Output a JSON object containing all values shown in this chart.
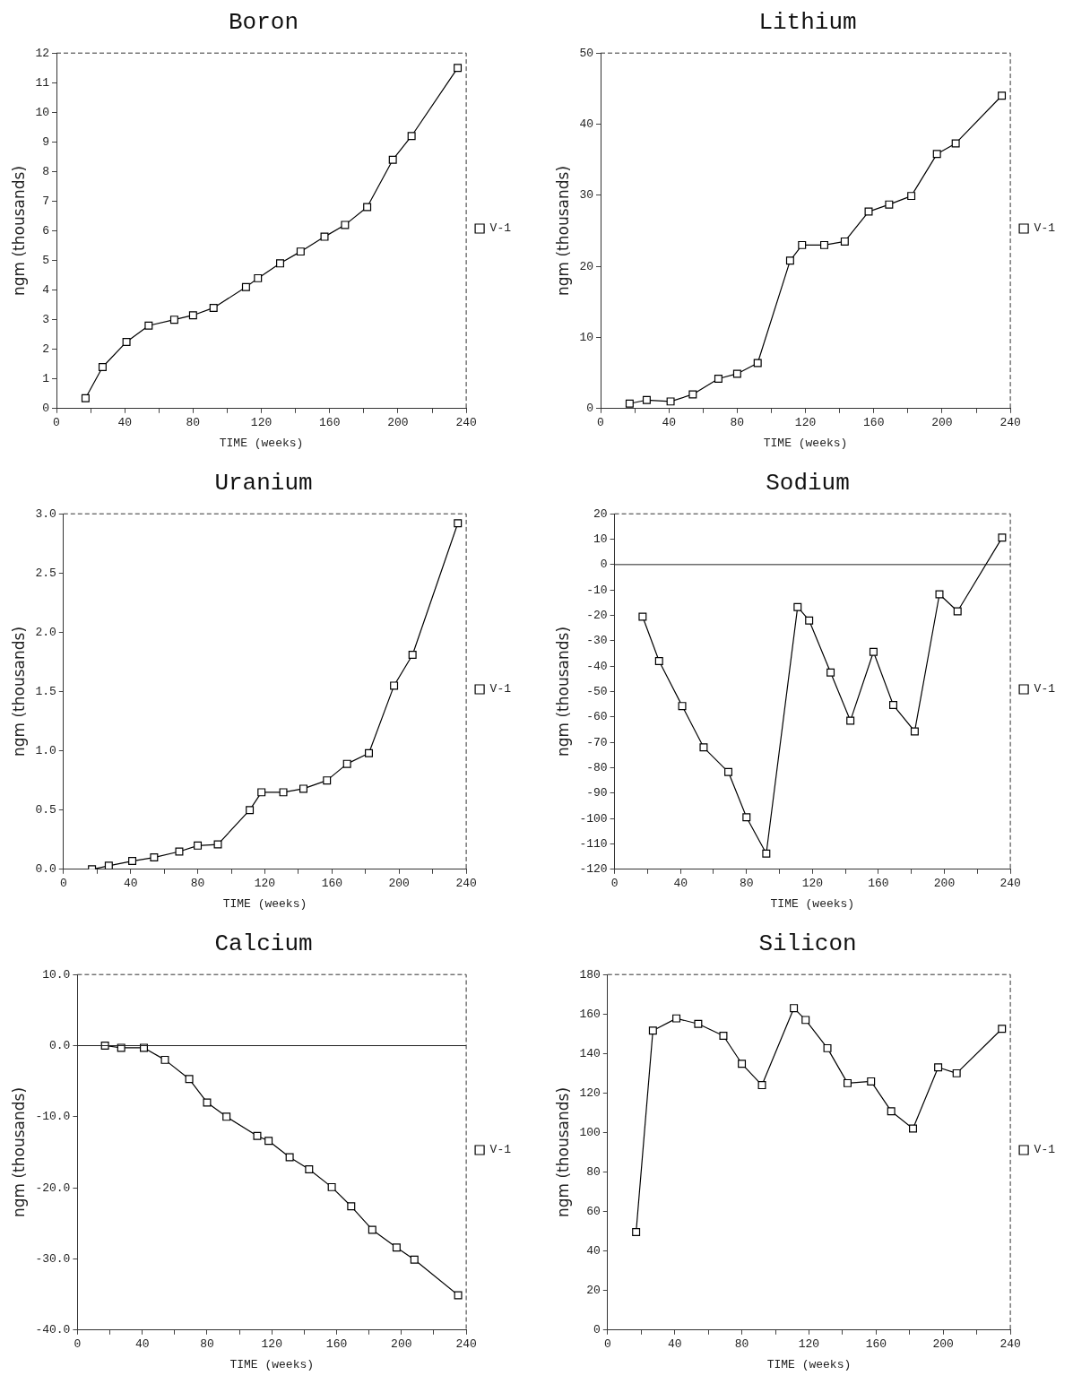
{
  "chart_data": [
    {
      "type": "line",
      "title": "Boron",
      "xlabel": "TIME (weeks)",
      "ylabel": "ngm (thousands)",
      "legend": "right",
      "marker": "square",
      "grid": false,
      "x": [
        17,
        27,
        41,
        54,
        69,
        80,
        92,
        111,
        118,
        131,
        143,
        157,
        169,
        182,
        197,
        208,
        235
      ],
      "series": [
        {
          "name": "V-1",
          "color": "#000000",
          "values": [
            0.35,
            1.4,
            2.25,
            2.8,
            3.0,
            3.15,
            3.4,
            4.1,
            4.4,
            4.9,
            5.3,
            5.8,
            6.2,
            6.8,
            8.4,
            9.2,
            11.5
          ]
        }
      ],
      "xlim": [
        0,
        240
      ],
      "xticks": [
        0,
        {
          "value": 20,
          "label": null
        },
        40,
        {
          "value": 60,
          "label": null
        },
        80,
        {
          "value": 100,
          "label": null
        },
        120,
        {
          "value": 140,
          "label": null
        },
        160,
        {
          "value": 180,
          "label": null
        },
        200,
        {
          "value": 220,
          "label": null
        },
        240
      ],
      "ylim": [
        0,
        12
      ],
      "yticks": [
        0,
        1,
        2,
        3,
        4,
        5,
        6,
        7,
        8,
        9,
        10,
        11,
        12
      ]
    },
    {
      "type": "line",
      "title": "Lithium",
      "xlabel": "TIME (weeks)",
      "ylabel": "ngm (thousands)",
      "legend": "right",
      "marker": "square",
      "grid": false,
      "x": [
        17,
        27,
        41,
        54,
        69,
        80,
        92,
        111,
        118,
        131,
        143,
        157,
        169,
        182,
        197,
        208,
        235
      ],
      "series": [
        {
          "name": "V-1",
          "color": "#000000",
          "values": [
            0.7,
            1.2,
            1.0,
            2.0,
            4.2,
            4.9,
            6.4,
            20.8,
            23.0,
            23.0,
            23.5,
            27.7,
            28.7,
            29.9,
            35.8,
            37.3,
            44.0
          ]
        }
      ],
      "xlim": [
        0,
        240
      ],
      "xticks": [
        0,
        {
          "value": 20,
          "label": null
        },
        40,
        {
          "value": 60,
          "label": null
        },
        80,
        {
          "value": 100,
          "label": null
        },
        120,
        {
          "value": 140,
          "label": null
        },
        160,
        {
          "value": 180,
          "label": null
        },
        200,
        {
          "value": 220,
          "label": null
        },
        240
      ],
      "ylim": [
        0,
        50
      ],
      "yticks": [
        0,
        10,
        20,
        30,
        40,
        50
      ]
    },
    {
      "type": "line",
      "title": "Uranium",
      "xlabel": "TIME (weeks)",
      "ylabel": "ngm (thousands)",
      "legend": "right",
      "marker": "square",
      "grid": false,
      "x": [
        17,
        27,
        41,
        54,
        69,
        80,
        92,
        111,
        118,
        131,
        143,
        157,
        169,
        182,
        197,
        208,
        235
      ],
      "series": [
        {
          "name": "V-1",
          "color": "#000000",
          "values": [
            0.0,
            0.03,
            0.07,
            0.1,
            0.15,
            0.2,
            0.21,
            0.5,
            0.65,
            0.65,
            0.68,
            0.75,
            0.89,
            0.98,
            1.55,
            1.81,
            2.92
          ]
        }
      ],
      "xlim": [
        0,
        240
      ],
      "xticks": [
        0,
        {
          "value": 20,
          "label": null
        },
        40,
        {
          "value": 60,
          "label": null
        },
        80,
        {
          "value": 100,
          "label": null
        },
        120,
        {
          "value": 140,
          "label": null
        },
        160,
        {
          "value": 180,
          "label": null
        },
        200,
        {
          "value": 220,
          "label": null
        },
        240
      ],
      "ylim": [
        0,
        3
      ],
      "yticks": [
        {
          "value": 0,
          "label": "0.0"
        },
        {
          "value": 0.5,
          "label": "0.5"
        },
        {
          "value": 1,
          "label": "1.0"
        },
        {
          "value": 1.5,
          "label": "1.5"
        },
        {
          "value": 2,
          "label": "2.0"
        },
        {
          "value": 2.5,
          "label": "2.5"
        },
        {
          "value": 3,
          "label": "3.0"
        }
      ]
    },
    {
      "type": "line",
      "title": "Sodium",
      "xlabel": "TIME (weeks)",
      "ylabel": "ngm (thousands)",
      "legend": "right",
      "marker": "square",
      "grid": false,
      "x": [
        17,
        27,
        41,
        54,
        69,
        80,
        92,
        111,
        118,
        131,
        143,
        157,
        169,
        182,
        197,
        208,
        235
      ],
      "series": [
        {
          "name": "V-1",
          "color": "#000000",
          "values": [
            -20.5,
            -38,
            -55.7,
            -72,
            -81.7,
            -99.5,
            -113.8,
            -16.7,
            -22,
            -42.5,
            -61.5,
            -34.4,
            -55.3,
            -65.7,
            -11.7,
            -18.4,
            10.6
          ]
        }
      ],
      "ref_lines": [
        {
          "axis": "y",
          "value": 0
        }
      ],
      "xlim": [
        0,
        240
      ],
      "xticks": [
        0,
        {
          "value": 20,
          "label": null
        },
        40,
        {
          "value": 60,
          "label": null
        },
        80,
        {
          "value": 100,
          "label": null
        },
        120,
        {
          "value": 140,
          "label": null
        },
        160,
        {
          "value": 180,
          "label": null
        },
        200,
        {
          "value": 220,
          "label": null
        },
        240
      ],
      "ylim": [
        -120,
        20
      ],
      "yticks": [
        -120,
        -110,
        -100,
        -90,
        -80,
        -70,
        -60,
        -50,
        -40,
        -30,
        -20,
        -10,
        0,
        10,
        20
      ]
    },
    {
      "type": "line",
      "title": "Calcium",
      "xlabel": "TIME (weeks)",
      "ylabel": "ngm (thousands)",
      "legend": "right",
      "marker": "square",
      "grid": false,
      "x": [
        17,
        27,
        41,
        54,
        69,
        80,
        92,
        111,
        118,
        131,
        143,
        157,
        169,
        182,
        197,
        208,
        235
      ],
      "series": [
        {
          "name": "V-1",
          "color": "#000000",
          "values": [
            0.0,
            -0.3,
            -0.3,
            -2.0,
            -4.7,
            -8.0,
            -10.0,
            -12.7,
            -13.4,
            -15.7,
            -17.4,
            -19.9,
            -22.6,
            -25.9,
            -28.4,
            -30.1,
            -35.1
          ]
        }
      ],
      "ref_lines": [
        {
          "axis": "y",
          "value": 0
        }
      ],
      "xlim": [
        0,
        240
      ],
      "xticks": [
        0,
        {
          "value": 20,
          "label": null
        },
        40,
        {
          "value": 60,
          "label": null
        },
        80,
        {
          "value": 100,
          "label": null
        },
        120,
        {
          "value": 140,
          "label": null
        },
        160,
        {
          "value": 180,
          "label": null
        },
        200,
        {
          "value": 220,
          "label": null
        },
        240
      ],
      "ylim": [
        -40,
        10
      ],
      "yticks": [
        {
          "value": -40,
          "label": "-40.0"
        },
        {
          "value": -30,
          "label": "-30.0"
        },
        {
          "value": -20,
          "label": "-20.0"
        },
        {
          "value": -10,
          "label": "-10.0"
        },
        {
          "value": 0,
          "label": "0.0"
        },
        {
          "value": 10,
          "label": "10.0"
        }
      ]
    },
    {
      "type": "line",
      "title": "Silicon",
      "xlabel": "TIME (weeks)",
      "ylabel": "ngm (thousands)",
      "legend": "right",
      "marker": "square",
      "grid": false,
      "x": [
        17,
        27,
        41,
        54,
        69,
        80,
        92,
        111,
        118,
        131,
        143,
        157,
        169,
        182,
        197,
        208,
        235
      ],
      "series": [
        {
          "name": "V-1",
          "color": "#000000",
          "values": [
            49.6,
            151.6,
            157.8,
            155,
            149,
            134.8,
            124,
            163,
            157,
            142.7,
            125,
            125.9,
            110.8,
            102,
            133,
            130,
            152.5
          ]
        }
      ],
      "xlim": [
        0,
        240
      ],
      "xticks": [
        0,
        {
          "value": 20,
          "label": null
        },
        40,
        {
          "value": 60,
          "label": null
        },
        80,
        {
          "value": 100,
          "label": null
        },
        120,
        {
          "value": 140,
          "label": null
        },
        160,
        {
          "value": 180,
          "label": null
        },
        200,
        {
          "value": 220,
          "label": null
        },
        240
      ],
      "ylim": [
        0,
        180
      ],
      "yticks": [
        0,
        20,
        40,
        60,
        80,
        100,
        120,
        140,
        160,
        180
      ]
    }
  ]
}
